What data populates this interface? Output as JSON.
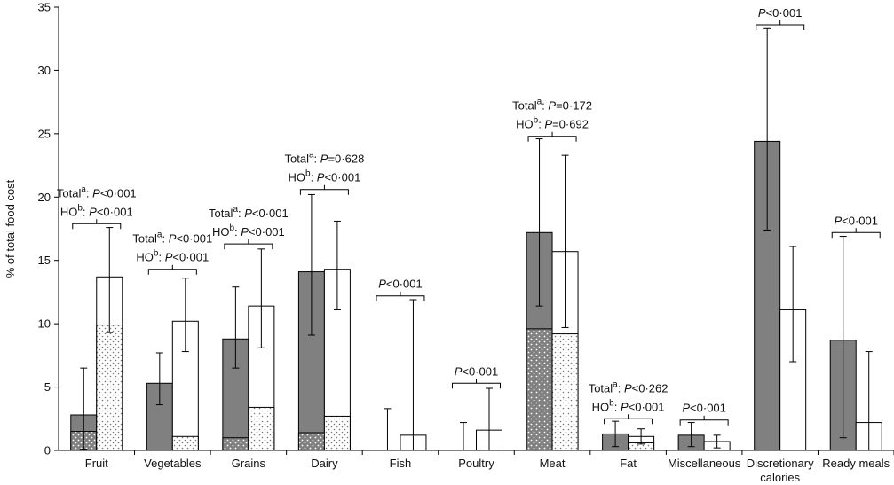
{
  "chart_data": {
    "type": "bar",
    "ylabel": "% of total food cost",
    "ylim": [
      0,
      35
    ],
    "yticks": [
      0,
      5,
      10,
      15,
      20,
      25,
      30,
      35
    ],
    "categories": [
      {
        "label": "Fruit",
        "label2": ""
      },
      {
        "label": "Vegetables",
        "label2": ""
      },
      {
        "label": "Grains",
        "label2": ""
      },
      {
        "label": "Dairy",
        "label2": ""
      },
      {
        "label": "Fish",
        "label2": ""
      },
      {
        "label": "Poultry",
        "label2": ""
      },
      {
        "label": "Meat",
        "label2": ""
      },
      {
        "label": "Fat",
        "label2": ""
      },
      {
        "label": "Miscellaneous",
        "label2": ""
      },
      {
        "label": "Discretionary",
        "label2": "calories"
      },
      {
        "label": "Ready meals",
        "label2": ""
      }
    ],
    "series": [
      {
        "color": "#808080",
        "values": [
          2.8,
          5.3,
          8.8,
          14.1,
          0,
          0,
          17.2,
          1.3,
          1.2,
          24.4,
          8.7
        ],
        "healthy_option_portion": [
          1.5,
          0,
          1.0,
          1.4,
          0,
          0,
          9.6,
          0,
          0,
          0,
          0
        ],
        "err_low": [
          0.1,
          3.6,
          6.5,
          9.1,
          0,
          0,
          11.4,
          0.3,
          0.3,
          17.4,
          1.0
        ],
        "err_high": [
          6.5,
          7.7,
          12.9,
          20.2,
          3.3,
          2.2,
          24.6,
          2.3,
          2.2,
          33.3,
          16.9
        ]
      },
      {
        "color": "#ffffff",
        "values": [
          13.7,
          10.2,
          11.4,
          14.3,
          1.2,
          1.6,
          15.7,
          1.1,
          0.7,
          11.1,
          2.2
        ],
        "healthy_option_portion": [
          9.9,
          1.1,
          3.4,
          2.7,
          0,
          0,
          9.2,
          0.6,
          0,
          0,
          0
        ],
        "err_low": [
          9.3,
          7.8,
          8.1,
          11.1,
          0,
          0,
          9.7,
          0.5,
          0.2,
          7.0,
          0
        ],
        "err_high": [
          17.6,
          13.6,
          15.9,
          18.1,
          11.9,
          4.9,
          23.3,
          1.7,
          1.2,
          16.1,
          7.8
        ]
      }
    ],
    "annotations": [
      {
        "cat": 0,
        "y": 17.9,
        "lines": [
          {
            "label": "Total",
            "sup": "a",
            "pre": "P",
            "stat": "<0·001"
          },
          {
            "label": "HO",
            "sup": "b",
            "pre": "P",
            "stat": "<0·001"
          }
        ]
      },
      {
        "cat": 1,
        "y": 14.3,
        "lines": [
          {
            "label": "Total",
            "sup": "a",
            "pre": "P",
            "stat": "<0·001"
          },
          {
            "label": "HO",
            "sup": "b",
            "pre": "P",
            "stat": "<0·001"
          }
        ]
      },
      {
        "cat": 2,
        "y": 16.3,
        "lines": [
          {
            "label": "Total",
            "sup": "a",
            "pre": "P",
            "stat": "<0·001"
          },
          {
            "label": "HO",
            "sup": "b",
            "pre": "P",
            "stat": "<0·001"
          }
        ]
      },
      {
        "cat": 3,
        "y": 20.6,
        "lines": [
          {
            "label": "Total",
            "sup": "a",
            "pre": "P",
            "stat": "=0·628"
          },
          {
            "label": "HO",
            "sup": "b",
            "pre": "P",
            "stat": "<0·001"
          }
        ]
      },
      {
        "cat": 4,
        "y": 12.2,
        "lines": [
          {
            "label": "",
            "sup": "",
            "pre": "P",
            "stat": "<0·001"
          }
        ]
      },
      {
        "cat": 5,
        "y": 5.3,
        "lines": [
          {
            "label": "",
            "sup": "",
            "pre": "P",
            "stat": "<0·001"
          }
        ]
      },
      {
        "cat": 6,
        "y": 24.8,
        "lines": [
          {
            "label": "Total",
            "sup": "a",
            "pre": "P",
            "stat": "=0·172"
          },
          {
            "label": "HO",
            "sup": "b",
            "pre": "P",
            "stat": "=0·692"
          }
        ]
      },
      {
        "cat": 7,
        "y": 2.5,
        "lines": [
          {
            "label": "Total",
            "sup": "a",
            "pre": "P",
            "stat": "<0·262"
          },
          {
            "label": "HO",
            "sup": "b",
            "pre": "P",
            "stat": "<0·001"
          }
        ]
      },
      {
        "cat": 8,
        "y": 2.4,
        "lines": [
          {
            "label": "",
            "sup": "",
            "pre": "P",
            "stat": "<0·001"
          }
        ]
      },
      {
        "cat": 9,
        "y": 33.6,
        "lines": [
          {
            "label": "",
            "sup": "",
            "pre": "P",
            "stat": "<0·001"
          }
        ]
      },
      {
        "cat": 10,
        "y": 17.2,
        "lines": [
          {
            "label": "",
            "sup": "",
            "pre": "P",
            "stat": "<0·001"
          }
        ]
      }
    ]
  }
}
